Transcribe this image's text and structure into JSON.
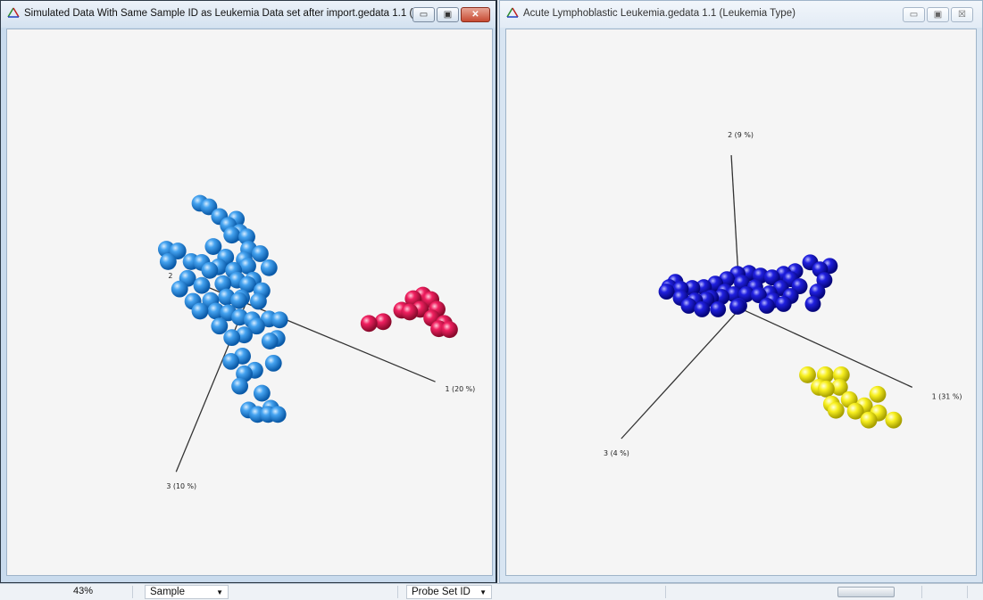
{
  "left_window": {
    "title": "Simulated Data With Same Sample ID as Leukemia Data set after import.gedata 1.1 (...",
    "controls": {
      "minimize": "▭",
      "restore": "▣",
      "close": "✕"
    },
    "axes": {
      "axis1": "1 (20 %)",
      "axis2": "2",
      "axis3": "3 (10 %)"
    },
    "colors": {
      "cluster_a": "#2b8be0",
      "cluster_b": "#e0104c"
    }
  },
  "right_window": {
    "title": "Acute Lymphoblastic Leukemia.gedata 1.1 (Leukemia Type)",
    "controls": {
      "minimize": "▭",
      "restore": "▣",
      "close": "☒"
    },
    "axes": {
      "axis1": "1 (31 %)",
      "axis2": "2 (9 %)",
      "axis3": "3 (4 %)"
    },
    "colors": {
      "cluster_a": "#1010d0",
      "cluster_b": "#f2ee10"
    }
  },
  "statusbar": {
    "zoom": "43%",
    "sample_dropdown": "Sample",
    "probe_dropdown": "Probe Set ID"
  }
}
